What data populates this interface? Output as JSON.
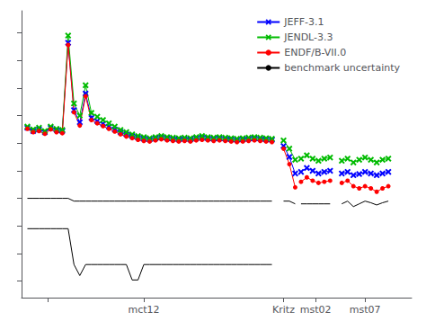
{
  "chart_data": {
    "type": "line",
    "xlim": [
      -1,
      66
    ],
    "ylim": [
      -2.8,
      2.4
    ],
    "xticks": [
      {
        "value": 3.5,
        "label": null
      },
      {
        "value": 20,
        "label": "mct12"
      },
      {
        "value": 44,
        "label": "Kritz"
      },
      {
        "value": 49.5,
        "label": "mst02"
      },
      {
        "value": 58,
        "label": "mst07"
      }
    ],
    "yticks": [
      -2.5,
      -2.0,
      -1.5,
      -1.0,
      -0.5,
      0,
      0.5,
      1.0,
      1.5,
      2.0
    ],
    "tick_labels": "x",
    "legend": "upper right",
    "series": [
      {
        "name": "JEFF-3.1",
        "color": "#0000FF",
        "marker": "x",
        "x": [
          0,
          1,
          2,
          3,
          4,
          5,
          6,
          7,
          8,
          9,
          10,
          11,
          12,
          13,
          14,
          15,
          16,
          17,
          18,
          19,
          20,
          21,
          22,
          23,
          24,
          25,
          26,
          27,
          28,
          29,
          30,
          31,
          32,
          33,
          34,
          35,
          36,
          37,
          38,
          39,
          40,
          41,
          42
        ],
        "values": [
          0.28,
          0.22,
          0.25,
          0.2,
          0.28,
          0.24,
          0.22,
          1.82,
          0.6,
          0.38,
          0.9,
          0.46,
          0.4,
          0.35,
          0.3,
          0.25,
          0.2,
          0.16,
          0.13,
          0.1,
          0.08,
          0.07,
          0.09,
          0.11,
          0.09,
          0.08,
          0.07,
          0.08,
          0.07,
          0.09,
          0.1,
          0.09,
          0.08,
          0.09,
          0.08,
          0.07,
          0.06,
          0.07,
          0.08,
          0.09,
          0.08,
          0.07,
          0.06
        ]
      },
      {
        "name": "JEFF-3.1",
        "color": "#0000FF",
        "marker": "x",
        "x": [
          44,
          45,
          46
        ],
        "values": [
          -0.05,
          -0.25,
          -0.55
        ]
      },
      {
        "name": "JEFF-3.1",
        "color": "#0000FF",
        "marker": "x",
        "x": [
          47,
          48,
          49,
          50,
          51,
          52
        ],
        "values": [
          -0.52,
          -0.45,
          -0.5,
          -0.55,
          -0.52,
          -0.5
        ]
      },
      {
        "name": "JEFF-3.1",
        "color": "#0000FF",
        "marker": "x",
        "x": [
          54,
          55,
          56,
          57,
          58,
          59,
          60,
          61,
          62
        ],
        "values": [
          -0.55,
          -0.52,
          -0.58,
          -0.56,
          -0.52,
          -0.55,
          -0.58,
          -0.55,
          -0.52
        ]
      },
      {
        "name": "JENDL-3.3",
        "color": "#00BB00",
        "marker": "x",
        "x": [
          0,
          1,
          2,
          3,
          4,
          5,
          6,
          7,
          8,
          9,
          10,
          11,
          12,
          13,
          14,
          15,
          16,
          17,
          18,
          19,
          20,
          21,
          22,
          23,
          24,
          25,
          26,
          27,
          28,
          29,
          30,
          31,
          32,
          33,
          34,
          35,
          36,
          37,
          38,
          39,
          40,
          41,
          42
        ],
        "values": [
          0.3,
          0.25,
          0.28,
          0.22,
          0.3,
          0.26,
          0.24,
          1.95,
          0.72,
          0.5,
          1.05,
          0.55,
          0.48,
          0.42,
          0.36,
          0.3,
          0.24,
          0.2,
          0.16,
          0.13,
          0.11,
          0.09,
          0.11,
          0.13,
          0.11,
          0.1,
          0.09,
          0.1,
          0.09,
          0.11,
          0.13,
          0.11,
          0.1,
          0.11,
          0.1,
          0.09,
          0.08,
          0.09,
          0.1,
          0.11,
          0.1,
          0.09,
          0.08
        ]
      },
      {
        "name": "JENDL-3.3",
        "color": "#00BB00",
        "marker": "x",
        "x": [
          44,
          45,
          46
        ],
        "values": [
          0.05,
          -0.1,
          -0.3
        ]
      },
      {
        "name": "JENDL-3.3",
        "color": "#00BB00",
        "marker": "x",
        "x": [
          47,
          48,
          49,
          50,
          51,
          52
        ],
        "values": [
          -0.28,
          -0.22,
          -0.28,
          -0.32,
          -0.28,
          -0.26
        ]
      },
      {
        "name": "JENDL-3.3",
        "color": "#00BB00",
        "marker": "x",
        "x": [
          54,
          55,
          56,
          57,
          58,
          59,
          60,
          61,
          62
        ],
        "values": [
          -0.32,
          -0.28,
          -0.35,
          -0.3,
          -0.26,
          -0.3,
          -0.35,
          -0.3,
          -0.28
        ]
      },
      {
        "name": "ENDF/B-VII.0",
        "color": "#FF0000",
        "marker": "o",
        "x": [
          0,
          1,
          2,
          3,
          4,
          5,
          6,
          7,
          8,
          9,
          10,
          11,
          12,
          13,
          14,
          15,
          16,
          17,
          18,
          19,
          20,
          21,
          22,
          23,
          24,
          25,
          26,
          27,
          28,
          29,
          30,
          31,
          32,
          33,
          34,
          35,
          36,
          37,
          38,
          39,
          40,
          41,
          42
        ],
        "values": [
          0.26,
          0.2,
          0.22,
          0.17,
          0.25,
          0.2,
          0.18,
          1.78,
          0.56,
          0.32,
          0.85,
          0.42,
          0.36,
          0.31,
          0.26,
          0.21,
          0.16,
          0.12,
          0.09,
          0.06,
          0.04,
          0.03,
          0.05,
          0.07,
          0.05,
          0.04,
          0.03,
          0.04,
          0.03,
          0.05,
          0.06,
          0.05,
          0.04,
          0.05,
          0.04,
          0.03,
          0.02,
          0.03,
          0.04,
          0.05,
          0.04,
          0.03,
          0.02
        ]
      },
      {
        "name": "ENDF/B-VII.0",
        "color": "#FF0000",
        "marker": "o",
        "x": [
          44,
          45,
          46
        ],
        "values": [
          -0.1,
          -0.38,
          -0.8
        ]
      },
      {
        "name": "ENDF/B-VII.0",
        "color": "#FF0000",
        "marker": "o",
        "x": [
          47,
          48,
          49,
          50,
          51,
          52
        ],
        "values": [
          -0.7,
          -0.62,
          -0.68,
          -0.72,
          -0.7,
          -0.68
        ]
      },
      {
        "name": "ENDF/B-VII.0",
        "color": "#FF0000",
        "marker": "o",
        "x": [
          54,
          55,
          56,
          57,
          58,
          59,
          60,
          61,
          62
        ],
        "values": [
          -0.72,
          -0.68,
          -0.78,
          -0.82,
          -0.78,
          -0.82,
          -0.88,
          -0.82,
          -0.78
        ]
      },
      {
        "name": "benchmark uncertainty",
        "color": "#000000",
        "marker": "none",
        "x": [
          0,
          1,
          2,
          3,
          4,
          5,
          6,
          7,
          8,
          9,
          10,
          11,
          12,
          13,
          14,
          15,
          16,
          17,
          18,
          19,
          20,
          21,
          22,
          23,
          24,
          25,
          26,
          27,
          28,
          29,
          30,
          31,
          32,
          33,
          34,
          35,
          36,
          37,
          38,
          39,
          40,
          41,
          42
        ],
        "values": [
          -1.0,
          -1.0,
          -1.0,
          -1.0,
          -1.0,
          -1.0,
          -1.0,
          -1.0,
          -1.05,
          -1.05,
          -1.05,
          -1.05,
          -1.05,
          -1.05,
          -1.05,
          -1.05,
          -1.05,
          -1.05,
          -1.05,
          -1.05,
          -1.05,
          -1.05,
          -1.05,
          -1.05,
          -1.05,
          -1.05,
          -1.05,
          -1.05,
          -1.05,
          -1.05,
          -1.05,
          -1.05,
          -1.05,
          -1.05,
          -1.05,
          -1.05,
          -1.05,
          -1.05,
          -1.05,
          -1.05,
          -1.05,
          -1.05,
          -1.05
        ]
      },
      {
        "name": "benchmark uncertainty",
        "color": "#000000",
        "marker": "none",
        "x": [
          44,
          45,
          46
        ],
        "values": [
          -1.05,
          -1.05,
          -1.1
        ]
      },
      {
        "name": "benchmark uncertainty",
        "color": "#000000",
        "marker": "none",
        "x": [
          47,
          48,
          49,
          50,
          51,
          52
        ],
        "values": [
          -1.1,
          -1.1,
          -1.1,
          -1.1,
          -1.1,
          -1.1
        ]
      },
      {
        "name": "benchmark uncertainty",
        "color": "#000000",
        "marker": "none",
        "x": [
          54,
          55,
          56,
          57,
          58,
          59,
          60,
          61,
          62
        ],
        "values": [
          -1.1,
          -1.05,
          -1.15,
          -1.1,
          -1.05,
          -1.08,
          -1.12,
          -1.08,
          -1.05
        ]
      },
      {
        "name": "benchmark uncertainty",
        "color": "#000000",
        "marker": "none",
        "x": [
          0,
          1,
          2,
          3,
          4,
          5,
          6,
          7,
          8,
          9,
          10,
          11,
          12,
          13,
          14,
          15,
          16,
          17,
          18,
          19,
          20,
          21,
          22,
          23,
          24,
          25,
          26,
          27,
          28,
          29,
          30,
          31,
          32,
          33,
          34,
          35,
          36,
          37,
          38,
          39,
          40,
          41,
          42
        ],
        "values": [
          -1.55,
          -1.55,
          -1.55,
          -1.55,
          -1.55,
          -1.55,
          -1.55,
          -1.55,
          -2.2,
          -2.4,
          -2.2,
          -2.2,
          -2.2,
          -2.2,
          -2.2,
          -2.2,
          -2.2,
          -2.2,
          -2.48,
          -2.48,
          -2.2,
          -2.2,
          -2.2,
          -2.2,
          -2.2,
          -2.2,
          -2.2,
          -2.2,
          -2.2,
          -2.2,
          -2.2,
          -2.2,
          -2.2,
          -2.2,
          -2.2,
          -2.2,
          -2.2,
          -2.2,
          -2.2,
          -2.2,
          -2.2,
          -2.2,
          -2.2
        ]
      }
    ]
  }
}
